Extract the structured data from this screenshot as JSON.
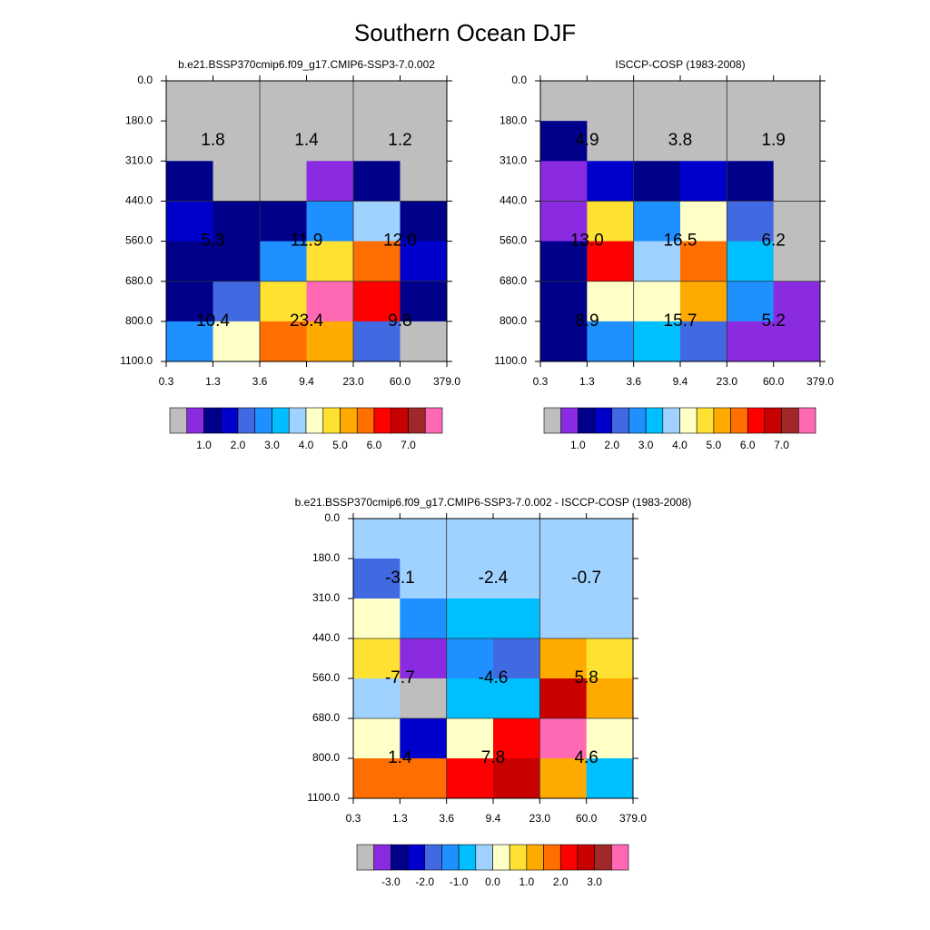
{
  "title": "Southern Ocean DJF",
  "chart_data": [
    {
      "type": "heatmap",
      "subtitle": "b.e21.BSSP370cmip6.f09_g17.CMIP6-SSP3-7.0.002",
      "xticks": [
        0.3,
        1.3,
        3.6,
        9.4,
        {
          "value": 23,
          "label": "23.0"
        },
        {
          "value": 60,
          "label": "60.0"
        },
        {
          "value": 379,
          "label": "379.0"
        }
      ],
      "yticks": [
        {
          "value": 0,
          "label": "0.0"
        },
        {
          "value": 180,
          "label": "180.0"
        },
        {
          "value": 310,
          "label": "310.0"
        },
        {
          "value": 440,
          "label": "440.0"
        },
        {
          "value": 560,
          "label": "560.0"
        },
        {
          "value": 680,
          "label": "680.0"
        },
        {
          "value": 800,
          "label": "800.0"
        },
        {
          "value": 1100,
          "label": "1100.0"
        }
      ],
      "values": [
        [
          0.25,
          0.25,
          0.25,
          0.25,
          0.25,
          0.25
        ],
        [
          0.25,
          0.25,
          0.25,
          0.25,
          0.25,
          0.25
        ],
        [
          1.25,
          0.25,
          0.25,
          0.75,
          1.25,
          0.25
        ],
        [
          1.75,
          1.25,
          1.25,
          2.75,
          3.75,
          1.25
        ],
        [
          1.25,
          1.25,
          2.75,
          4.75,
          5.75,
          1.75
        ],
        [
          1.25,
          2.25,
          4.75,
          7.75,
          6.25,
          1.25
        ],
        [
          2.75,
          4.25,
          5.75,
          5.25,
          2.25,
          0.25
        ]
      ],
      "box_values": [
        [
          1.8,
          1.4,
          1.2
        ],
        [
          5.3,
          11.9,
          {
            "value": 12,
            "label": "12.0"
          }
        ],
        [
          10.4,
          23.4,
          9.8
        ]
      ],
      "levels": [
        0.5,
        1,
        1.5,
        2,
        2.5,
        3,
        3.5,
        4,
        4.5,
        5,
        5.5,
        6,
        6.5,
        7,
        7.5
      ],
      "colors": [
        "#bebebe",
        "#8a2be2",
        "#00008b",
        "#0000cd",
        "#4169e1",
        "#1e90ff",
        "#00bfff",
        "#a0d2ff",
        "#ffffc8",
        "#ffe132",
        "#ffaa00",
        "#ff6e00",
        "#ff0000",
        "#c80000",
        "#a02828",
        "#ff69b4"
      ],
      "colorbar_ticks": [
        {
          "value": 1,
          "label": "1.0"
        },
        {
          "value": 2,
          "label": "2.0"
        },
        {
          "value": 3,
          "label": "3.0"
        },
        {
          "value": 4,
          "label": "4.0"
        },
        {
          "value": 5,
          "label": "5.0"
        },
        {
          "value": 6,
          "label": "6.0"
        },
        {
          "value": 7,
          "label": "7.0"
        }
      ]
    },
    {
      "type": "heatmap",
      "subtitle": "ISCCP-COSP (1983-2008)",
      "xticks": [
        0.3,
        1.3,
        3.6,
        9.4,
        {
          "value": 23,
          "label": "23.0"
        },
        {
          "value": 60,
          "label": "60.0"
        },
        {
          "value": 379,
          "label": "379.0"
        }
      ],
      "yticks": [
        {
          "value": 0,
          "label": "0.0"
        },
        {
          "value": 180,
          "label": "180.0"
        },
        {
          "value": 310,
          "label": "310.0"
        },
        {
          "value": 440,
          "label": "440.0"
        },
        {
          "value": 560,
          "label": "560.0"
        },
        {
          "value": 680,
          "label": "680.0"
        },
        {
          "value": 800,
          "label": "800.0"
        },
        {
          "value": 1100,
          "label": "1100.0"
        }
      ],
      "values": [
        [
          0.25,
          0.25,
          0.25,
          0.25,
          0.25,
          0.25
        ],
        [
          1.25,
          0.25,
          0.25,
          0.25,
          0.25,
          0.25
        ],
        [
          0.75,
          1.75,
          1.25,
          1.75,
          1.25,
          0.25
        ],
        [
          0.75,
          4.75,
          2.75,
          4.25,
          2.25,
          0.25
        ],
        [
          1.25,
          6.25,
          3.75,
          5.75,
          3.25,
          0.25
        ],
        [
          1.25,
          4.25,
          4.25,
          5.25,
          2.75,
          0.75
        ],
        [
          1.25,
          2.75,
          3.25,
          2.25,
          0.75,
          0.75
        ]
      ],
      "box_values": [
        [
          4.9,
          3.8,
          1.9
        ],
        [
          {
            "value": 13,
            "label": "13.0"
          },
          16.5,
          6.2
        ],
        [
          8.9,
          15.7,
          5.2
        ]
      ],
      "levels": [
        0.5,
        1,
        1.5,
        2,
        2.5,
        3,
        3.5,
        4,
        4.5,
        5,
        5.5,
        6,
        6.5,
        7,
        7.5
      ],
      "colors": [
        "#bebebe",
        "#8a2be2",
        "#00008b",
        "#0000cd",
        "#4169e1",
        "#1e90ff",
        "#00bfff",
        "#a0d2ff",
        "#ffffc8",
        "#ffe132",
        "#ffaa00",
        "#ff6e00",
        "#ff0000",
        "#c80000",
        "#a02828",
        "#ff69b4"
      ],
      "colorbar_ticks": [
        {
          "value": 1,
          "label": "1.0"
        },
        {
          "value": 2,
          "label": "2.0"
        },
        {
          "value": 3,
          "label": "3.0"
        },
        {
          "value": 4,
          "label": "4.0"
        },
        {
          "value": 5,
          "label": "5.0"
        },
        {
          "value": 6,
          "label": "6.0"
        },
        {
          "value": 7,
          "label": "7.0"
        }
      ]
    },
    {
      "type": "heatmap",
      "subtitle": "b.e21.BSSP370cmip6.f09_g17.CMIP6-SSP3-7.0.002 - ISCCP-COSP (1983-2008)",
      "xticks": [
        0.3,
        1.3,
        3.6,
        9.4,
        {
          "value": 23,
          "label": "23.0"
        },
        {
          "value": 60,
          "label": "60.0"
        },
        {
          "value": 379,
          "label": "379.0"
        }
      ],
      "yticks": [
        {
          "value": 0,
          "label": "0.0"
        },
        {
          "value": 180,
          "label": "180.0"
        },
        {
          "value": 310,
          "label": "310.0"
        },
        {
          "value": 440,
          "label": "440.0"
        },
        {
          "value": 560,
          "label": "560.0"
        },
        {
          "value": 680,
          "label": "680.0"
        },
        {
          "value": 800,
          "label": "800.0"
        },
        {
          "value": 1100,
          "label": "1100.0"
        }
      ],
      "values": [
        [
          -0.25,
          -0.25,
          -0.25,
          -0.25,
          -0.25,
          -0.25
        ],
        [
          -1.75,
          -0.25,
          -0.25,
          -0.25,
          -0.25,
          -0.25
        ],
        [
          0.25,
          -1.25,
          -0.75,
          -0.75,
          -0.25,
          -0.25
        ],
        [
          0.75,
          -3.25,
          -1.25,
          -1.75,
          1.25,
          0.75
        ],
        [
          -0.25,
          -3.75,
          -0.75,
          -0.75,
          2.75,
          1.25
        ],
        [
          0.25,
          -2.25,
          0.25,
          2.25,
          3.75,
          0.25
        ],
        [
          1.75,
          1.75,
          2.25,
          2.75,
          1.25,
          -0.75
        ]
      ],
      "box_values": [
        [
          -3.1,
          -2.4,
          -0.7
        ],
        [
          -7.7,
          -4.6,
          5.8
        ],
        [
          1.4,
          7.8,
          4.6
        ]
      ],
      "levels": [
        -3.5,
        -3,
        -2.5,
        -2,
        -1.5,
        -1,
        -0.5,
        0,
        0.5,
        1,
        1.5,
        2,
        2.5,
        3,
        3.5
      ],
      "colors": [
        "#bebebe",
        "#8a2be2",
        "#00008b",
        "#0000cd",
        "#4169e1",
        "#1e90ff",
        "#00bfff",
        "#a0d2ff",
        "#ffffc8",
        "#ffe132",
        "#ffaa00",
        "#ff6e00",
        "#ff0000",
        "#c80000",
        "#a02828",
        "#ff69b4"
      ],
      "colorbar_ticks": [
        {
          "value": -3,
          "label": "-3.0"
        },
        {
          "value": -2,
          "label": "-2.0"
        },
        {
          "value": -1,
          "label": "-1.0"
        },
        {
          "value": 0,
          "label": "0.0"
        },
        {
          "value": 1,
          "label": "1.0"
        },
        {
          "value": 2,
          "label": "2.0"
        },
        {
          "value": 3,
          "label": "3.0"
        }
      ]
    }
  ]
}
